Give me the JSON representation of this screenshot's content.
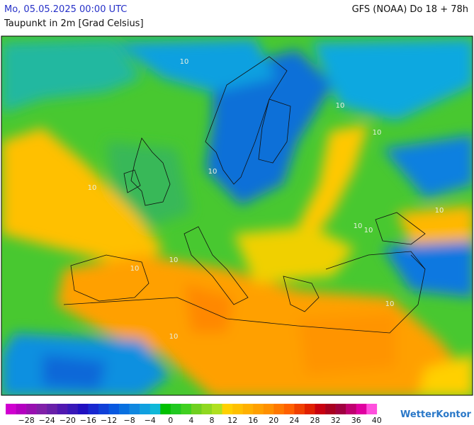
{
  "header": {
    "datetime": "Mo, 05.05.2025 00:00 UTC",
    "model": "GFS (NOAA) Do 18 + 78h",
    "parameter": "Taupunkt in 2m [Grad Celsius]"
  },
  "map": {
    "contour_labels": [
      "10",
      "10",
      "10",
      "10",
      "10",
      "10",
      "10",
      "10",
      "10",
      "10",
      "10",
      "10"
    ]
  },
  "legend": {
    "colors": [
      "#d000d0",
      "#b400c0",
      "#9810b0",
      "#8020a8",
      "#6820a8",
      "#5018b0",
      "#3818b8",
      "#2010c0",
      "#1828d0",
      "#1040d8",
      "#0858e0",
      "#0870e0",
      "#1088e0",
      "#10a0e0",
      "#10b8d8",
      "#00c000",
      "#20c820",
      "#40d020",
      "#70d020",
      "#90d820",
      "#b0e020",
      "#ffd000",
      "#ffc000",
      "#ffb000",
      "#ffa000",
      "#ff9000",
      "#ff7800",
      "#ff6000",
      "#f04000",
      "#e02000",
      "#c80010",
      "#a80020",
      "#a00040",
      "#c00070",
      "#e000a0",
      "#ff50dd"
    ],
    "ticks": [
      "−28",
      "−24",
      "−20",
      "−16",
      "−12",
      "−8",
      "−4",
      "0",
      "4",
      "8",
      "12",
      "16",
      "20",
      "24",
      "28",
      "32",
      "36",
      "40"
    ]
  },
  "logo": "WetterKontor"
}
